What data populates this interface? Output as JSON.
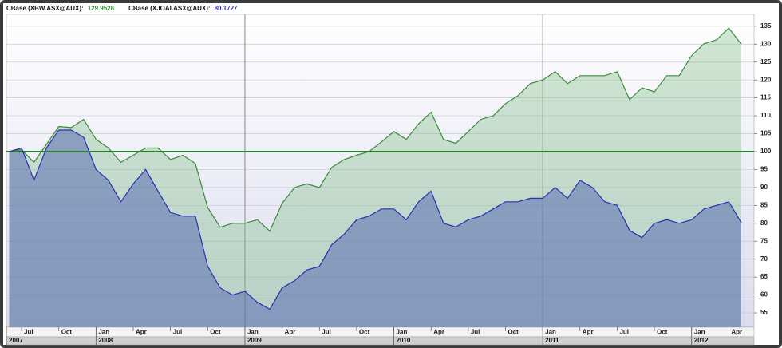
{
  "chart_data": {
    "type": "area",
    "x": [
      "2007-06",
      "2007-07",
      "2007-08",
      "2007-09",
      "2007-10",
      "2007-11",
      "2007-12",
      "2008-01",
      "2008-02",
      "2008-03",
      "2008-04",
      "2008-05",
      "2008-06",
      "2008-07",
      "2008-08",
      "2008-09",
      "2008-10",
      "2008-11",
      "2008-12",
      "2009-01",
      "2009-02",
      "2009-03",
      "2009-04",
      "2009-05",
      "2009-06",
      "2009-07",
      "2009-08",
      "2009-09",
      "2009-10",
      "2009-11",
      "2009-12",
      "2010-01",
      "2010-02",
      "2010-03",
      "2010-04",
      "2010-05",
      "2010-06",
      "2010-07",
      "2010-08",
      "2010-09",
      "2010-10",
      "2010-11",
      "2010-12",
      "2011-01",
      "2011-02",
      "2011-03",
      "2011-04",
      "2011-05",
      "2011-06",
      "2011-07",
      "2011-08",
      "2011-09",
      "2011-10",
      "2011-11",
      "2011-12",
      "2012-01",
      "2012-02",
      "2012-03",
      "2012-04",
      "2012-05"
    ],
    "series": [
      {
        "name": "CBase (XBW.ASX@AUX):",
        "color": "#3a8a3a",
        "fill": "rgba(120,185,130,0.35)",
        "values": [
          100,
          100.5,
          97,
          102,
          107,
          106.7,
          109,
          103.4,
          101,
          97,
          99,
          101,
          101,
          97.8,
          99,
          96.7,
          84.4,
          78.9,
          80,
          80,
          81,
          77.8,
          85.6,
          90,
          91,
          90,
          95.6,
          97.8,
          99,
          100,
          102.7,
          105.6,
          103.4,
          107.8,
          111,
          103.4,
          102.3,
          105.6,
          109,
          110,
          113.4,
          115.6,
          119,
          120,
          122.3,
          119,
          121.2,
          121.2,
          121.2,
          122.3,
          114.5,
          117.8,
          116.7,
          121.2,
          121.2,
          126.8,
          130.1,
          131.2,
          134.5,
          129.9528
        ]
      },
      {
        "name": "CBase (XJOAI.ASX@AUX):",
        "color": "#2a2fb0",
        "fill": "rgba(80,100,175,0.5)",
        "values": [
          100,
          101,
          92,
          101,
          106,
          106,
          104,
          95,
          92,
          86,
          91,
          95,
          89,
          83,
          82,
          82,
          68,
          62,
          60,
          61,
          58,
          56,
          62,
          64,
          67,
          68,
          74,
          77,
          81,
          82,
          84,
          84,
          81,
          86,
          89,
          80,
          79,
          81,
          82,
          84,
          86,
          86,
          87,
          87,
          90,
          87,
          92,
          90,
          86,
          85,
          78,
          76,
          80,
          81,
          80,
          81,
          84,
          85,
          86,
          80.1727
        ]
      }
    ],
    "ylim": [
      51,
      138.3
    ],
    "yticks": [
      55,
      60,
      65,
      70,
      75,
      80,
      85,
      90,
      95,
      100,
      105,
      110,
      115,
      120,
      125,
      130,
      135
    ],
    "grid": true,
    "reference_line": {
      "value": 100,
      "color": "#2e7d2e"
    },
    "vertical_lines": [
      "2009-01",
      "2011-01"
    ],
    "xticks": [
      {
        "value": "2007-07",
        "label": "Jul"
      },
      {
        "value": "2007-10",
        "label": "Oct"
      },
      {
        "value": "2008-01",
        "label": "Jan"
      },
      {
        "value": "2008-04",
        "label": "Apr"
      },
      {
        "value": "2008-07",
        "label": "Jul"
      },
      {
        "value": "2008-10",
        "label": "Oct"
      },
      {
        "value": "2009-01",
        "label": "Jan"
      },
      {
        "value": "2009-04",
        "label": "Apr"
      },
      {
        "value": "2009-07",
        "label": "Jul"
      },
      {
        "value": "2009-10",
        "label": "Oct"
      },
      {
        "value": "2010-01",
        "label": "Jan"
      },
      {
        "value": "2010-04",
        "label": "Apr"
      },
      {
        "value": "2010-07",
        "label": "Jul"
      },
      {
        "value": "2010-10",
        "label": "Oct"
      },
      {
        "value": "2011-01",
        "label": "Jan"
      },
      {
        "value": "2011-04",
        "label": "Apr"
      },
      {
        "value": "2011-07",
        "label": "Jul"
      },
      {
        "value": "2011-10",
        "label": "Oct"
      },
      {
        "value": "2012-01",
        "label": "Jan"
      },
      {
        "value": "2012-04",
        "label": "Apr"
      }
    ],
    "year_ticks": [
      {
        "value": "2007-06",
        "label": "2007"
      },
      {
        "value": "2008-01",
        "label": "2008"
      },
      {
        "value": "2009-01",
        "label": "2009"
      },
      {
        "value": "2010-01",
        "label": "2010"
      },
      {
        "value": "2011-01",
        "label": "2011"
      },
      {
        "value": "2012-01",
        "label": "2012"
      }
    ]
  }
}
